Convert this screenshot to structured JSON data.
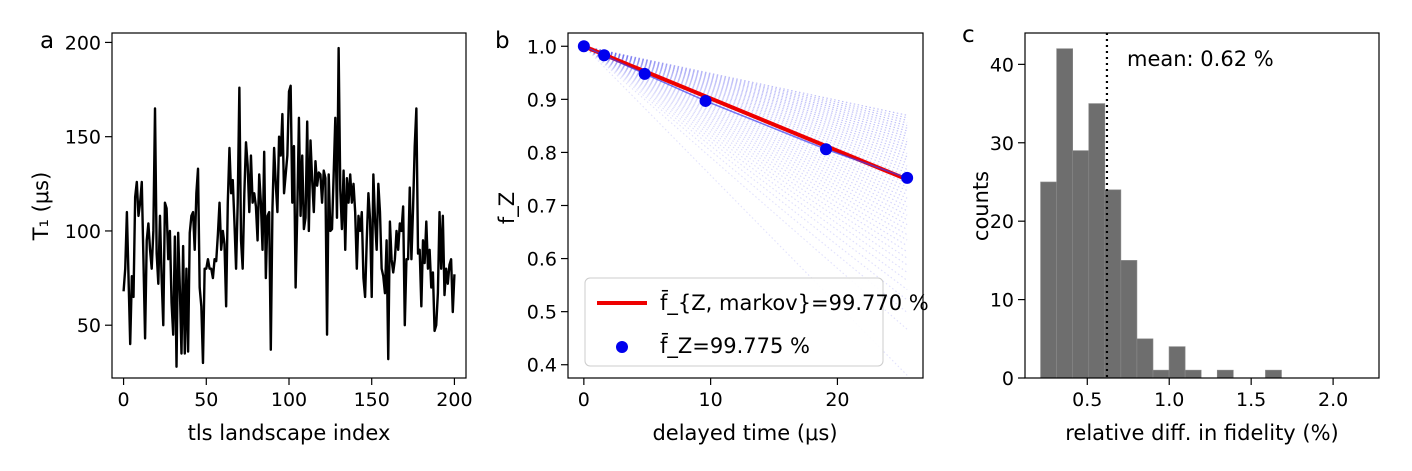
{
  "chart_data": [
    {
      "panel": "a",
      "type": "line",
      "xlabel": "tls landscape index",
      "ylabel": "T₁ (μs)",
      "xlim": [
        -7,
        207
      ],
      "ylim": [
        22,
        205
      ],
      "xticks": [
        0,
        50,
        100,
        150,
        200
      ],
      "yticks": [
        50,
        100,
        150,
        200
      ],
      "series": [
        {
          "color": "#000000",
          "x": [
            0,
            1,
            2,
            3,
            4,
            5,
            6,
            7,
            8,
            9,
            10,
            11,
            12,
            13,
            14,
            15,
            16,
            17,
            18,
            19,
            20,
            21,
            22,
            23,
            24,
            25,
            26,
            27,
            28,
            29,
            30,
            31,
            32,
            33,
            34,
            35,
            36,
            37,
            38,
            39,
            40,
            41,
            42,
            43,
            44,
            45,
            46,
            47,
            48,
            49,
            50,
            51,
            52,
            53,
            54,
            55,
            56,
            57,
            58,
            59,
            60,
            61,
            62,
            63,
            64,
            65,
            66,
            67,
            68,
            69,
            70,
            71,
            72,
            73,
            74,
            75,
            76,
            77,
            78,
            79,
            80,
            81,
            82,
            83,
            84,
            85,
            86,
            87,
            88,
            89,
            90,
            91,
            92,
            93,
            94,
            95,
            96,
            97,
            98,
            99,
            100,
            101,
            102,
            103,
            104,
            105,
            106,
            107,
            108,
            109,
            110,
            111,
            112,
            113,
            114,
            115,
            116,
            117,
            118,
            119,
            120,
            121,
            122,
            123,
            124,
            125,
            126,
            127,
            128,
            129,
            130,
            131,
            132,
            133,
            134,
            135,
            136,
            137,
            138,
            139,
            140,
            141,
            142,
            143,
            144,
            145,
            146,
            147,
            148,
            149,
            150,
            151,
            152,
            153,
            154,
            155,
            156,
            157,
            158,
            159,
            160,
            161,
            162,
            163,
            164,
            165,
            166,
            167,
            168,
            169,
            170,
            171,
            172,
            173,
            174,
            175,
            176,
            177,
            178,
            179,
            180,
            181,
            182,
            183,
            184,
            185,
            186,
            187,
            188,
            189,
            190,
            191,
            192,
            193,
            194,
            195,
            196,
            197,
            198,
            199,
            200
          ],
          "y": [
            68,
            80,
            110,
            75,
            40,
            76,
            65,
            118,
            126,
            108,
            115,
            126,
            85,
            43,
            95,
            104,
            90,
            80,
            100,
            165,
            88,
            72,
            108,
            75,
            50,
            115,
            112,
            85,
            100,
            62,
            45,
            97,
            28,
            99,
            70,
            35,
            92,
            35,
            80,
            36,
            99,
            108,
            110,
            90,
            120,
            133,
            70,
            60,
            30,
            80,
            80,
            85,
            80,
            80,
            75,
            85,
            84,
            98,
            115,
            90,
            100,
            93,
            60,
            115,
            144,
            120,
            127,
            105,
            80,
            115,
            176,
            95,
            80,
            120,
            147,
            135,
            110,
            140,
            115,
            120,
            113,
            95,
            130,
            115,
            90,
            142,
            75,
            108,
            110,
            37,
            112,
            144,
            125,
            110,
            150,
            140,
            162,
            120,
            130,
            140,
            174,
            177,
            115,
            145,
            70,
            110,
            160,
            108,
            140,
            101,
            107,
            158,
            100,
            148,
            127,
            110,
            137,
            124,
            131,
            130,
            115,
            132,
            128,
            45,
            130,
            100,
            101,
            130,
            160,
            107,
            197,
            122,
            101,
            132,
            90,
            128,
            115,
            130,
            115,
            125,
            110,
            80,
            108,
            100,
            110,
            75,
            65,
            95,
            120,
            106,
            65,
            130,
            106,
            90,
            125,
            110,
            80,
            76,
            67,
            95,
            32,
            105,
            85,
            78,
            85,
            100,
            90,
            104,
            100,
            113,
            50,
            85,
            85,
            123,
            85,
            112,
            145,
            165,
            88,
            90,
            60,
            95,
            83,
            105,
            80,
            90,
            70,
            78,
            47,
            50,
            67,
            110,
            80,
            108,
            66,
            80,
            72,
            82,
            85,
            57,
            77
          ]
        }
      ]
    },
    {
      "panel": "b",
      "type": "scatter",
      "xlabel": "delayed time (μs)",
      "ylabel": "f_Z",
      "xlim": [
        -1.25,
        26.75
      ],
      "ylim": [
        0.375,
        1.025
      ],
      "xticks": [
        0,
        10,
        20
      ],
      "yticks": [
        0.4,
        0.5,
        0.6,
        0.7,
        0.8,
        0.9,
        1.0
      ],
      "legend": "lower-left",
      "series": [
        {
          "name": "f̄_{Z, markov}=99.770 %",
          "type": "line",
          "color": "#ee0000",
          "x": [
            0,
            25.5
          ],
          "y": [
            1.0,
            0.749
          ]
        },
        {
          "name": "f̄_Z=99.775 %",
          "type": "scatter",
          "color": "#0000ee",
          "x": [
            0,
            1.6,
            4.8,
            9.6,
            19.1,
            25.5
          ],
          "y": [
            1.0,
            0.983,
            0.948,
            0.897,
            0.806,
            0.752
          ]
        }
      ],
      "background_lines": {
        "color": "#5a5aee",
        "x_end": 25.5,
        "y_start": 1.0,
        "y_end_min": 0.38,
        "y_end_max": 0.87,
        "count": 48
      }
    },
    {
      "panel": "c",
      "type": "bar",
      "xlabel": "relative diff. in fidelity (%)",
      "ylabel": "counts",
      "xlim": [
        0.12,
        2.28
      ],
      "ylim": [
        0,
        44
      ],
      "xticks": [
        0.5,
        1.0,
        1.5,
        2.0
      ],
      "yticks": [
        0,
        10,
        20,
        30,
        40
      ],
      "bin_edges": [
        0.215,
        0.313,
        0.411,
        0.509,
        0.607,
        0.705,
        0.803,
        0.901,
        0.999,
        1.097,
        1.195,
        1.293,
        1.391,
        1.489,
        1.587,
        1.685,
        1.783,
        1.881,
        1.979,
        2.077,
        2.175
      ],
      "counts": [
        25,
        42,
        29,
        35,
        24,
        15,
        5,
        1,
        4,
        1,
        0,
        1,
        0,
        0,
        1,
        0,
        0,
        0,
        0,
        0
      ],
      "bar_color": "#6e6e6e",
      "vline": {
        "x": 0.62,
        "style": "dotted",
        "label": "mean: 0.62 %"
      }
    }
  ]
}
